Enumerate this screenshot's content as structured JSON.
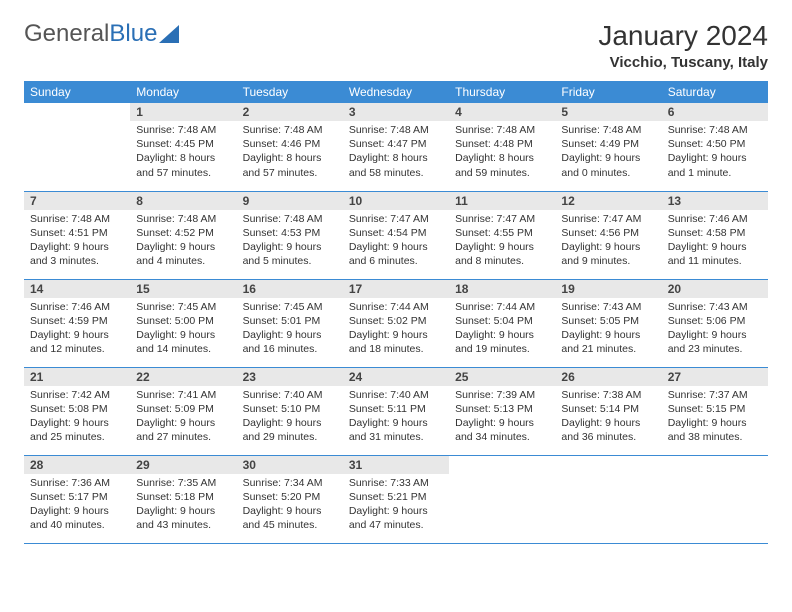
{
  "logo": {
    "text1": "General",
    "text2": "Blue"
  },
  "title": "January 2024",
  "location": "Vicchio, Tuscany, Italy",
  "headers": [
    "Sunday",
    "Monday",
    "Tuesday",
    "Wednesday",
    "Thursday",
    "Friday",
    "Saturday"
  ],
  "colors": {
    "header_bg": "#3b8bd4",
    "header_text": "#ffffff",
    "daynum_bg": "#e8e8e8",
    "border": "#3b8bd4",
    "logo_blue": "#2a6fb5"
  },
  "weeks": [
    [
      {
        "n": "",
        "sr": "",
        "ss": "",
        "dl": ""
      },
      {
        "n": "1",
        "sr": "Sunrise: 7:48 AM",
        "ss": "Sunset: 4:45 PM",
        "dl": "Daylight: 8 hours and 57 minutes."
      },
      {
        "n": "2",
        "sr": "Sunrise: 7:48 AM",
        "ss": "Sunset: 4:46 PM",
        "dl": "Daylight: 8 hours and 57 minutes."
      },
      {
        "n": "3",
        "sr": "Sunrise: 7:48 AM",
        "ss": "Sunset: 4:47 PM",
        "dl": "Daylight: 8 hours and 58 minutes."
      },
      {
        "n": "4",
        "sr": "Sunrise: 7:48 AM",
        "ss": "Sunset: 4:48 PM",
        "dl": "Daylight: 8 hours and 59 minutes."
      },
      {
        "n": "5",
        "sr": "Sunrise: 7:48 AM",
        "ss": "Sunset: 4:49 PM",
        "dl": "Daylight: 9 hours and 0 minutes."
      },
      {
        "n": "6",
        "sr": "Sunrise: 7:48 AM",
        "ss": "Sunset: 4:50 PM",
        "dl": "Daylight: 9 hours and 1 minute."
      }
    ],
    [
      {
        "n": "7",
        "sr": "Sunrise: 7:48 AM",
        "ss": "Sunset: 4:51 PM",
        "dl": "Daylight: 9 hours and 3 minutes."
      },
      {
        "n": "8",
        "sr": "Sunrise: 7:48 AM",
        "ss": "Sunset: 4:52 PM",
        "dl": "Daylight: 9 hours and 4 minutes."
      },
      {
        "n": "9",
        "sr": "Sunrise: 7:48 AM",
        "ss": "Sunset: 4:53 PM",
        "dl": "Daylight: 9 hours and 5 minutes."
      },
      {
        "n": "10",
        "sr": "Sunrise: 7:47 AM",
        "ss": "Sunset: 4:54 PM",
        "dl": "Daylight: 9 hours and 6 minutes."
      },
      {
        "n": "11",
        "sr": "Sunrise: 7:47 AM",
        "ss": "Sunset: 4:55 PM",
        "dl": "Daylight: 9 hours and 8 minutes."
      },
      {
        "n": "12",
        "sr": "Sunrise: 7:47 AM",
        "ss": "Sunset: 4:56 PM",
        "dl": "Daylight: 9 hours and 9 minutes."
      },
      {
        "n": "13",
        "sr": "Sunrise: 7:46 AM",
        "ss": "Sunset: 4:58 PM",
        "dl": "Daylight: 9 hours and 11 minutes."
      }
    ],
    [
      {
        "n": "14",
        "sr": "Sunrise: 7:46 AM",
        "ss": "Sunset: 4:59 PM",
        "dl": "Daylight: 9 hours and 12 minutes."
      },
      {
        "n": "15",
        "sr": "Sunrise: 7:45 AM",
        "ss": "Sunset: 5:00 PM",
        "dl": "Daylight: 9 hours and 14 minutes."
      },
      {
        "n": "16",
        "sr": "Sunrise: 7:45 AM",
        "ss": "Sunset: 5:01 PM",
        "dl": "Daylight: 9 hours and 16 minutes."
      },
      {
        "n": "17",
        "sr": "Sunrise: 7:44 AM",
        "ss": "Sunset: 5:02 PM",
        "dl": "Daylight: 9 hours and 18 minutes."
      },
      {
        "n": "18",
        "sr": "Sunrise: 7:44 AM",
        "ss": "Sunset: 5:04 PM",
        "dl": "Daylight: 9 hours and 19 minutes."
      },
      {
        "n": "19",
        "sr": "Sunrise: 7:43 AM",
        "ss": "Sunset: 5:05 PM",
        "dl": "Daylight: 9 hours and 21 minutes."
      },
      {
        "n": "20",
        "sr": "Sunrise: 7:43 AM",
        "ss": "Sunset: 5:06 PM",
        "dl": "Daylight: 9 hours and 23 minutes."
      }
    ],
    [
      {
        "n": "21",
        "sr": "Sunrise: 7:42 AM",
        "ss": "Sunset: 5:08 PM",
        "dl": "Daylight: 9 hours and 25 minutes."
      },
      {
        "n": "22",
        "sr": "Sunrise: 7:41 AM",
        "ss": "Sunset: 5:09 PM",
        "dl": "Daylight: 9 hours and 27 minutes."
      },
      {
        "n": "23",
        "sr": "Sunrise: 7:40 AM",
        "ss": "Sunset: 5:10 PM",
        "dl": "Daylight: 9 hours and 29 minutes."
      },
      {
        "n": "24",
        "sr": "Sunrise: 7:40 AM",
        "ss": "Sunset: 5:11 PM",
        "dl": "Daylight: 9 hours and 31 minutes."
      },
      {
        "n": "25",
        "sr": "Sunrise: 7:39 AM",
        "ss": "Sunset: 5:13 PM",
        "dl": "Daylight: 9 hours and 34 minutes."
      },
      {
        "n": "26",
        "sr": "Sunrise: 7:38 AM",
        "ss": "Sunset: 5:14 PM",
        "dl": "Daylight: 9 hours and 36 minutes."
      },
      {
        "n": "27",
        "sr": "Sunrise: 7:37 AM",
        "ss": "Sunset: 5:15 PM",
        "dl": "Daylight: 9 hours and 38 minutes."
      }
    ],
    [
      {
        "n": "28",
        "sr": "Sunrise: 7:36 AM",
        "ss": "Sunset: 5:17 PM",
        "dl": "Daylight: 9 hours and 40 minutes."
      },
      {
        "n": "29",
        "sr": "Sunrise: 7:35 AM",
        "ss": "Sunset: 5:18 PM",
        "dl": "Daylight: 9 hours and 43 minutes."
      },
      {
        "n": "30",
        "sr": "Sunrise: 7:34 AM",
        "ss": "Sunset: 5:20 PM",
        "dl": "Daylight: 9 hours and 45 minutes."
      },
      {
        "n": "31",
        "sr": "Sunrise: 7:33 AM",
        "ss": "Sunset: 5:21 PM",
        "dl": "Daylight: 9 hours and 47 minutes."
      },
      {
        "n": "",
        "sr": "",
        "ss": "",
        "dl": ""
      },
      {
        "n": "",
        "sr": "",
        "ss": "",
        "dl": ""
      },
      {
        "n": "",
        "sr": "",
        "ss": "",
        "dl": ""
      }
    ]
  ]
}
